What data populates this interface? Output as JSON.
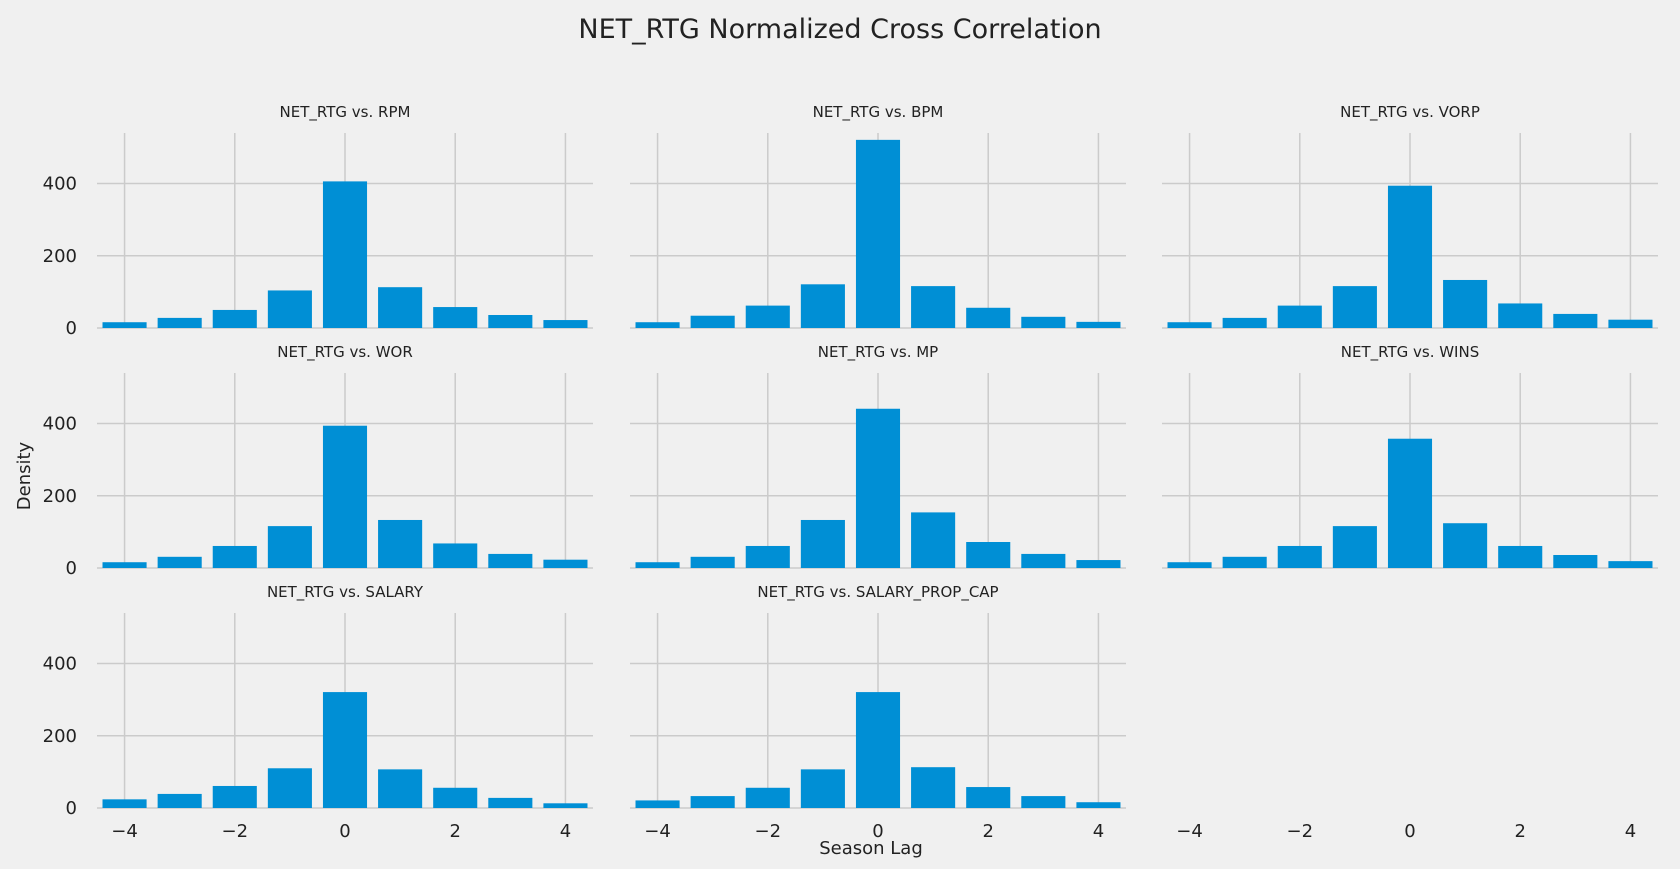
{
  "figure": {
    "title": "NET_RTG Normalized Cross Correlation",
    "xlabel": "Season Lag",
    "ylabel": "Density",
    "bar_color": "#008fd5",
    "background_color": "#f0f0f0",
    "grid_color": "#cbcbcb"
  },
  "chart_data": [
    {
      "type": "bar",
      "title": "NET_RTG vs. RPM",
      "x": [
        -4,
        -3,
        -2,
        -1,
        0,
        1,
        2,
        3,
        4
      ],
      "values": [
        16,
        28,
        50,
        104,
        406,
        113,
        58,
        36,
        22
      ],
      "xlim": [
        -4.5,
        4.5
      ],
      "ylim": [
        0,
        540
      ],
      "xticks": [
        -4,
        -2,
        0,
        2,
        4
      ],
      "yticks": [
        0,
        200,
        400
      ],
      "grid": true,
      "show_xticklabels": false,
      "show_yticklabels": true
    },
    {
      "type": "bar",
      "title": "NET_RTG vs. BPM",
      "x": [
        -4,
        -3,
        -2,
        -1,
        0,
        1,
        2,
        3,
        4
      ],
      "values": [
        16,
        34,
        62,
        121,
        521,
        116,
        56,
        31,
        17
      ],
      "xlim": [
        -4.5,
        4.5
      ],
      "ylim": [
        0,
        540
      ],
      "xticks": [
        -4,
        -2,
        0,
        2,
        4
      ],
      "yticks": [
        0,
        200,
        400
      ],
      "grid": true,
      "show_xticklabels": false,
      "show_yticklabels": false
    },
    {
      "type": "bar",
      "title": "NET_RTG vs. VORP",
      "x": [
        -4,
        -3,
        -2,
        -1,
        0,
        1,
        2,
        3,
        4
      ],
      "values": [
        16,
        28,
        62,
        116,
        394,
        133,
        68,
        39,
        23
      ],
      "xlim": [
        -4.5,
        4.5
      ],
      "ylim": [
        0,
        540
      ],
      "xticks": [
        -4,
        -2,
        0,
        2,
        4
      ],
      "yticks": [
        0,
        200,
        400
      ],
      "grid": true,
      "show_xticklabels": false,
      "show_yticklabels": false
    },
    {
      "type": "bar",
      "title": "NET_RTG vs. WOR",
      "x": [
        -4,
        -3,
        -2,
        -1,
        0,
        1,
        2,
        3,
        4
      ],
      "values": [
        16,
        31,
        61,
        116,
        394,
        133,
        68,
        39,
        23
      ],
      "xlim": [
        -4.5,
        4.5
      ],
      "ylim": [
        0,
        540
      ],
      "xticks": [
        -4,
        -2,
        0,
        2,
        4
      ],
      "yticks": [
        0,
        200,
        400
      ],
      "grid": true,
      "show_xticklabels": false,
      "show_yticklabels": true
    },
    {
      "type": "bar",
      "title": "NET_RTG vs. MP",
      "x": [
        -4,
        -3,
        -2,
        -1,
        0,
        1,
        2,
        3,
        4
      ],
      "values": [
        16,
        31,
        61,
        133,
        441,
        154,
        72,
        39,
        22
      ],
      "xlim": [
        -4.5,
        4.5
      ],
      "ylim": [
        0,
        540
      ],
      "xticks": [
        -4,
        -2,
        0,
        2,
        4
      ],
      "yticks": [
        0,
        200,
        400
      ],
      "grid": true,
      "show_xticklabels": false,
      "show_yticklabels": false
    },
    {
      "type": "bar",
      "title": "NET_RTG vs. WINS",
      "x": [
        -4,
        -3,
        -2,
        -1,
        0,
        1,
        2,
        3,
        4
      ],
      "values": [
        16,
        31,
        61,
        116,
        358,
        124,
        61,
        36,
        19
      ],
      "xlim": [
        -4.5,
        4.5
      ],
      "ylim": [
        0,
        540
      ],
      "xticks": [
        -4,
        -2,
        0,
        2,
        4
      ],
      "yticks": [
        0,
        200,
        400
      ],
      "grid": true,
      "show_xticklabels": false,
      "show_yticklabels": false
    },
    {
      "type": "bar",
      "title": "NET_RTG vs. SALARY",
      "x": [
        -4,
        -3,
        -2,
        -1,
        0,
        1,
        2,
        3,
        4
      ],
      "values": [
        24,
        39,
        61,
        110,
        321,
        107,
        56,
        28,
        13
      ],
      "xlim": [
        -4.5,
        4.5
      ],
      "ylim": [
        0,
        540
      ],
      "xticks": [
        -4,
        -2,
        0,
        2,
        4
      ],
      "yticks": [
        0,
        200,
        400
      ],
      "grid": true,
      "show_xticklabels": true,
      "show_yticklabels": true
    },
    {
      "type": "bar",
      "title": "NET_RTG vs. SALARY_PROP_CAP",
      "x": [
        -4,
        -3,
        -2,
        -1,
        0,
        1,
        2,
        3,
        4
      ],
      "values": [
        21,
        33,
        56,
        107,
        321,
        113,
        58,
        33,
        16
      ],
      "xlim": [
        -4.5,
        4.5
      ],
      "ylim": [
        0,
        540
      ],
      "xticks": [
        -4,
        -2,
        0,
        2,
        4
      ],
      "yticks": [
        0,
        200,
        400
      ],
      "grid": true,
      "show_xticklabels": true,
      "show_yticklabels": false
    },
    {
      "type": "bar",
      "title": "",
      "x": [],
      "values": [],
      "xlim": [
        -4.5,
        4.5
      ],
      "ylim": [
        0,
        540
      ],
      "xticks": [
        -4,
        -2,
        0,
        2,
        4
      ],
      "yticks": [],
      "grid": false,
      "show_xticklabels": true,
      "show_yticklabels": false
    }
  ]
}
